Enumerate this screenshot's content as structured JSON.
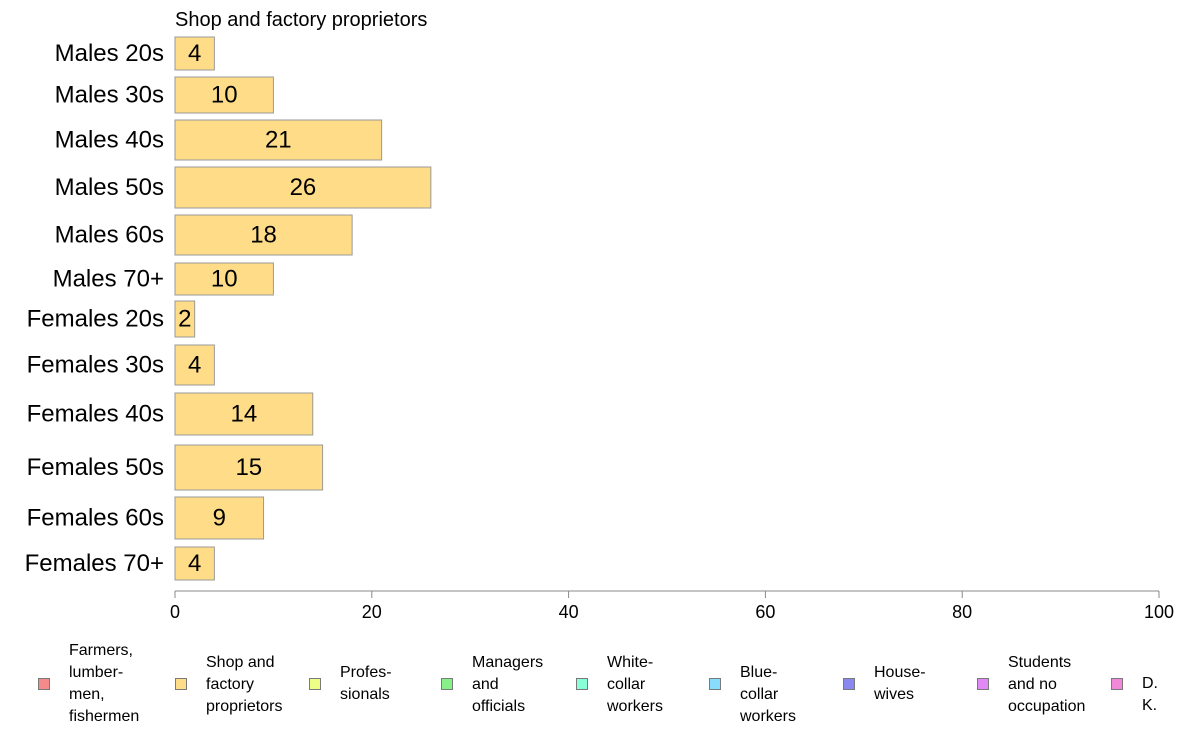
{
  "chart_data": {
    "type": "bar",
    "orientation": "horizontal",
    "title": "Shop and factory proprietors",
    "xlim": [
      0,
      100
    ],
    "xticks": [
      0,
      20,
      40,
      60,
      80,
      100
    ],
    "categories": [
      "Males 20s",
      "Males 30s",
      "Males 40s",
      "Males 50s",
      "Males 60s",
      "Males 70+",
      "Females 20s",
      "Females 30s",
      "Females 40s",
      "Females 50s",
      "Females 60s",
      "Females 70+"
    ],
    "series": [
      {
        "name": "Shop and factory proprietors",
        "values": [
          4,
          10,
          21,
          26,
          18,
          10,
          2,
          4,
          14,
          15,
          9,
          4
        ],
        "color": "#FFDD88"
      }
    ],
    "grid": false,
    "legend_position": "bottom"
  },
  "legend": [
    {
      "label": "Farmers,\nlumber-\nmen,\nfishermen",
      "color": "#F48A8A",
      "icon": "square-swatch"
    },
    {
      "label": "Shop and\nfactory\nproprietors",
      "color": "#FFDD88",
      "icon": "square-swatch"
    },
    {
      "label": "Profes-\nsionals",
      "color": "#EEFF88",
      "icon": "square-swatch"
    },
    {
      "label": "Managers\nand\nofficials",
      "color": "#88F088",
      "icon": "square-swatch"
    },
    {
      "label": "White-\ncollar\nworkers",
      "color": "#88FFD6",
      "icon": "square-swatch"
    },
    {
      "label": "Blue-collar\nworkers",
      "color": "#88DDFF",
      "icon": "square-swatch"
    },
    {
      "label": "House-\nwives",
      "color": "#8888F0",
      "icon": "square-swatch"
    },
    {
      "label": "Students\nand no\noccupation",
      "color": "#E088F4",
      "icon": "square-swatch"
    },
    {
      "label": "D. K.",
      "color": "#F488D8",
      "icon": "square-swatch"
    }
  ]
}
